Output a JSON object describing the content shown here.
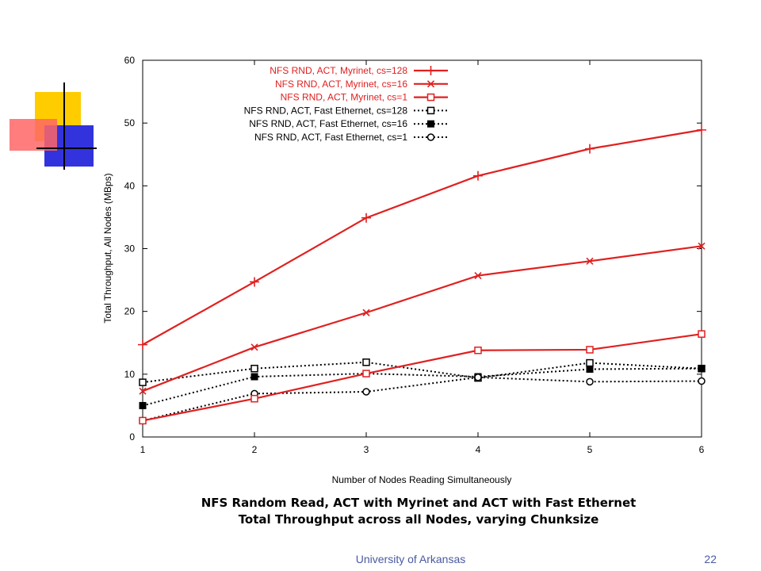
{
  "slide": {
    "caption_line1": "NFS Random Read, ACT with Myrinet and ACT with Fast Ethernet",
    "caption_line2": "Total Throughput across all Nodes, varying Chunksize",
    "footer_org": "University of Arkansas",
    "page_number": "22"
  },
  "chart_data": {
    "type": "line",
    "title": "",
    "xlabel": "Number of Nodes Reading Simultaneously",
    "ylabel": "Total Throughput, All Nodes (MBps)",
    "xlim": [
      1,
      6
    ],
    "ylim": [
      0,
      60
    ],
    "xticks": [
      1,
      2,
      3,
      4,
      5,
      6
    ],
    "yticks": [
      0,
      10,
      20,
      30,
      40,
      50,
      60
    ],
    "grid": false,
    "legend_position": "top-left",
    "x": [
      1,
      2,
      3,
      4,
      5,
      6
    ],
    "series": [
      {
        "name": "NFS RND, ACT, Myrinet, cs=128",
        "values": [
          14.7,
          24.7,
          34.9,
          41.6,
          45.9,
          48.9
        ],
        "color": "#e02020",
        "marker": "plus",
        "dash": false
      },
      {
        "name": "NFS RND, ACT, Myrinet, cs=16",
        "values": [
          7.3,
          14.3,
          19.8,
          25.7,
          28.0,
          30.4
        ],
        "color": "#e02020",
        "marker": "cross",
        "dash": false
      },
      {
        "name": "NFS RND, ACT, Myrinet, cs=1",
        "values": [
          2.6,
          6.1,
          10.1,
          13.8,
          13.9,
          16.4
        ],
        "color": "#e02020",
        "marker": "square-open",
        "dash": false
      },
      {
        "name": "NFS RND, ACT, Fast Ethernet, cs=128",
        "values": [
          8.7,
          10.9,
          11.9,
          9.4,
          11.8,
          10.9
        ],
        "color": "#000000",
        "marker": "square-open",
        "dash": true
      },
      {
        "name": "NFS RND, ACT, Fast Ethernet, cs=16",
        "values": [
          5.0,
          9.6,
          10.1,
          9.6,
          10.8,
          10.9
        ],
        "color": "#000000",
        "marker": "square-filled",
        "dash": true
      },
      {
        "name": "NFS RND, ACT, Fast Ethernet, cs=1",
        "values": [
          2.6,
          6.9,
          7.2,
          9.5,
          8.8,
          8.9
        ],
        "color": "#000000",
        "marker": "circle-open",
        "dash": true
      }
    ]
  }
}
